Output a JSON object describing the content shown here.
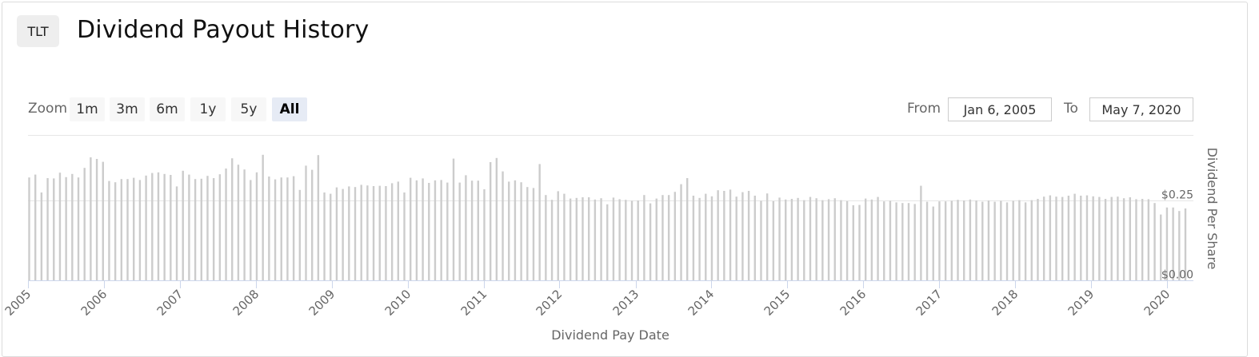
{
  "header": {
    "ticker": "TLT",
    "title": "Dividend Payout History"
  },
  "range_selector": {
    "zoom_label": "Zoom",
    "buttons": [
      "1m",
      "3m",
      "6m",
      "1y",
      "5y",
      "All"
    ],
    "active": "All",
    "from_label": "From",
    "from_value": "Jan 6, 2005",
    "to_label": "To",
    "to_value": "May 7, 2020"
  },
  "colors": {
    "bar": "#cccccc",
    "axis": "#ccd6eb",
    "grid": "#e6e6e6",
    "active_button": "#e6ebf5"
  },
  "chart_data": {
    "type": "bar",
    "xlabel": "Dividend Pay Date",
    "ylabel": "Dividend Per Share",
    "x_tick_labels": [
      "2005",
      "2006",
      "2007",
      "2008",
      "2009",
      "2010",
      "2011",
      "2012",
      "2013",
      "2014",
      "2015",
      "2016",
      "2017",
      "2018",
      "2019",
      "2020"
    ],
    "y_tick_labels": [
      "$0.00",
      "$0.25"
    ],
    "y_ticks": [
      0,
      0.25
    ],
    "ylim": [
      0,
      0.425
    ],
    "xlim": [
      "2005-01-01",
      "2020-05-07"
    ],
    "grid": true,
    "values": [
      0.322,
      0.331,
      0.275,
      0.32,
      0.319,
      0.337,
      0.323,
      0.333,
      0.322,
      0.352,
      0.385,
      0.38,
      0.371,
      0.311,
      0.307,
      0.317,
      0.317,
      0.321,
      0.314,
      0.328,
      0.336,
      0.338,
      0.333,
      0.33,
      0.294,
      0.343,
      0.331,
      0.317,
      0.318,
      0.327,
      0.32,
      0.332,
      0.35,
      0.382,
      0.362,
      0.347,
      0.314,
      0.338,
      0.393,
      0.325,
      0.316,
      0.322,
      0.322,
      0.326,
      0.283,
      0.359,
      0.346,
      0.392,
      0.275,
      0.271,
      0.291,
      0.286,
      0.294,
      0.292,
      0.299,
      0.297,
      0.295,
      0.296,
      0.295,
      0.304,
      0.309,
      0.275,
      0.321,
      0.313,
      0.319,
      0.305,
      0.313,
      0.314,
      0.306,
      0.381,
      0.306,
      0.329,
      0.312,
      0.312,
      0.285,
      0.37,
      0.383,
      0.341,
      0.309,
      0.313,
      0.307,
      0.292,
      0.289,
      0.364,
      0.267,
      0.252,
      0.279,
      0.271,
      0.256,
      0.258,
      0.26,
      0.26,
      0.253,
      0.257,
      0.238,
      0.259,
      0.254,
      0.252,
      0.249,
      0.25,
      0.267,
      0.241,
      0.256,
      0.267,
      0.267,
      0.277,
      0.301,
      0.32,
      0.265,
      0.258,
      0.271,
      0.263,
      0.282,
      0.28,
      0.284,
      0.262,
      0.276,
      0.28,
      0.265,
      0.249,
      0.272,
      0.248,
      0.259,
      0.253,
      0.255,
      0.258,
      0.251,
      0.261,
      0.257,
      0.251,
      0.254,
      0.257,
      0.251,
      0.248,
      0.235,
      0.236,
      0.256,
      0.253,
      0.261,
      0.247,
      0.249,
      0.244,
      0.242,
      0.242,
      0.239,
      0.296,
      0.246,
      0.231,
      0.247,
      0.247,
      0.249,
      0.252,
      0.25,
      0.253,
      0.25,
      0.246,
      0.25,
      0.246,
      0.249,
      0.244,
      0.249,
      0.251,
      0.244,
      0.251,
      0.255,
      0.262,
      0.266,
      0.262,
      0.261,
      0.265,
      0.271,
      0.265,
      0.266,
      0.263,
      0.261,
      0.255,
      0.261,
      0.262,
      0.257,
      0.26,
      0.254,
      0.255,
      0.254,
      0.242,
      0.206,
      0.228,
      0.228,
      0.217,
      0.225
    ]
  }
}
